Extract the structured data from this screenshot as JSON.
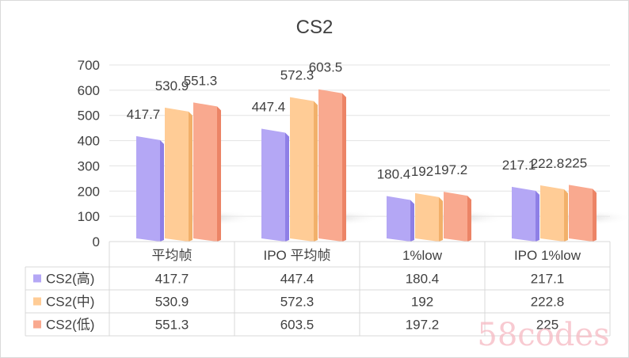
{
  "chart_data": {
    "type": "bar",
    "title": "CS2",
    "categories": [
      "平均帧",
      "IPO 平均帧",
      "1%low",
      "IPO 1%low"
    ],
    "series": [
      {
        "name": "CS2(高)",
        "values": [
          417.7,
          447.4,
          180.4,
          217.1
        ],
        "color": "#b4a7f5",
        "side": "#8e7fe6"
      },
      {
        "name": "CS2(中)",
        "values": [
          530.9,
          572.3,
          192,
          222.8
        ],
        "color": "#ffcc96",
        "side": "#f2b06a"
      },
      {
        "name": "CS2(低)",
        "values": [
          551.3,
          603.5,
          197.2,
          225
        ],
        "color": "#f9a98f",
        "side": "#ec8466"
      }
    ],
    "table_values": [
      [
        "417.7",
        "447.4",
        "180.4",
        "217.1"
      ],
      [
        "530.9",
        "572.3",
        "192",
        "222.8"
      ],
      [
        "551.3",
        "603.5",
        "197.2",
        "225"
      ]
    ],
    "ylim": [
      0,
      700
    ],
    "yticks": [
      0,
      100,
      200,
      300,
      400,
      500,
      600,
      700
    ],
    "grid": true,
    "legend": "data-table",
    "xlabel": "",
    "ylabel": ""
  },
  "watermark": "58codes"
}
